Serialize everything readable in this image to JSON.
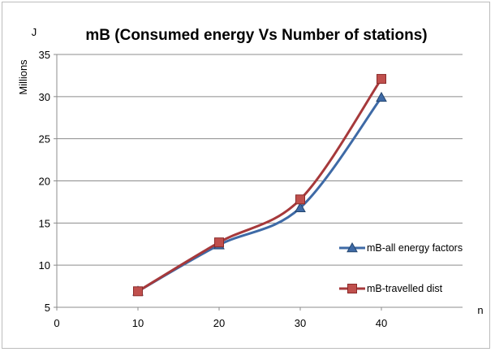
{
  "chart_data": {
    "type": "line",
    "title": "mB (Consumed energy Vs Number of stations)",
    "xlabel": "n",
    "ylabel": "J",
    "ylabel_secondary": "Millions",
    "xlim": [
      0,
      50
    ],
    "ylim": [
      5,
      35
    ],
    "x_ticks": [
      0,
      10,
      20,
      30,
      40
    ],
    "y_ticks": [
      5,
      10,
      15,
      20,
      25,
      30,
      35
    ],
    "grid": "horizontal",
    "legend_position": "right",
    "x": [
      10,
      20,
      30,
      40
    ],
    "series": [
      {
        "name": "mB-all energy factors",
        "marker": "triangle",
        "color": "#3e6aa6",
        "values": [
          6.9,
          12.4,
          16.8,
          29.9
        ]
      },
      {
        "name": "mB-travelled dist",
        "marker": "square",
        "color": "#a6393b",
        "values": [
          6.9,
          12.7,
          17.8,
          32.1
        ]
      }
    ]
  }
}
